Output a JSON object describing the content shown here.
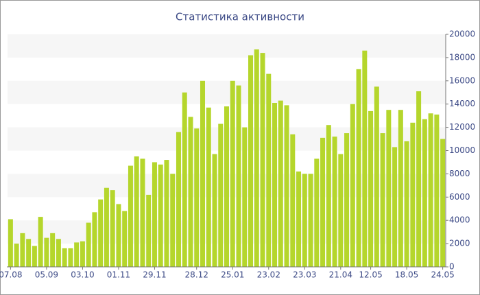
{
  "chart_data": {
    "type": "bar",
    "title": "Статистика активности",
    "categories": [
      "07.08",
      null,
      null,
      null,
      null,
      null,
      "05.09",
      null,
      null,
      null,
      null,
      null,
      "03.10",
      null,
      null,
      null,
      null,
      null,
      "01.11",
      null,
      null,
      null,
      null,
      null,
      "29.11",
      null,
      null,
      null,
      null,
      null,
      null,
      "28.12",
      null,
      null,
      null,
      null,
      null,
      "25.01",
      null,
      null,
      null,
      null,
      null,
      "23.02",
      null,
      null,
      null,
      null,
      null,
      "23.03",
      null,
      null,
      null,
      null,
      null,
      "21.04",
      null,
      null,
      null,
      null,
      "12.05",
      null,
      null,
      null,
      null,
      null,
      "18.05",
      null,
      null,
      null,
      null,
      null,
      "24.05"
    ],
    "values": [
      4100,
      2000,
      2900,
      2400,
      1800,
      4300,
      2500,
      2900,
      2400,
      1600,
      1600,
      2100,
      2200,
      3800,
      4700,
      5800,
      6800,
      6600,
      5400,
      4800,
      8700,
      9500,
      9300,
      6200,
      9000,
      8800,
      9200,
      8000,
      11600,
      15000,
      12900,
      11900,
      16000,
      13700,
      9700,
      12300,
      13800,
      16000,
      15600,
      12000,
      18200,
      18700,
      18400,
      16600,
      14100,
      14300,
      13900,
      11400,
      8200,
      8000,
      8000,
      9300,
      11100,
      12200,
      11200,
      9700,
      11500,
      14000,
      17000,
      18600,
      13400,
      15500,
      11500,
      13500,
      10300,
      13500,
      10800,
      12400,
      15100,
      12700,
      13200,
      13100,
      11000
    ],
    "color": "#b5d62c",
    "ylim": [
      0,
      20000
    ],
    "yticks": [
      0,
      2000,
      4000,
      6000,
      8000,
      10000,
      12000,
      14000,
      16000,
      18000,
      20000
    ],
    "grid": "bands",
    "band_color": "#f6f6f6",
    "axis_side": "right"
  }
}
